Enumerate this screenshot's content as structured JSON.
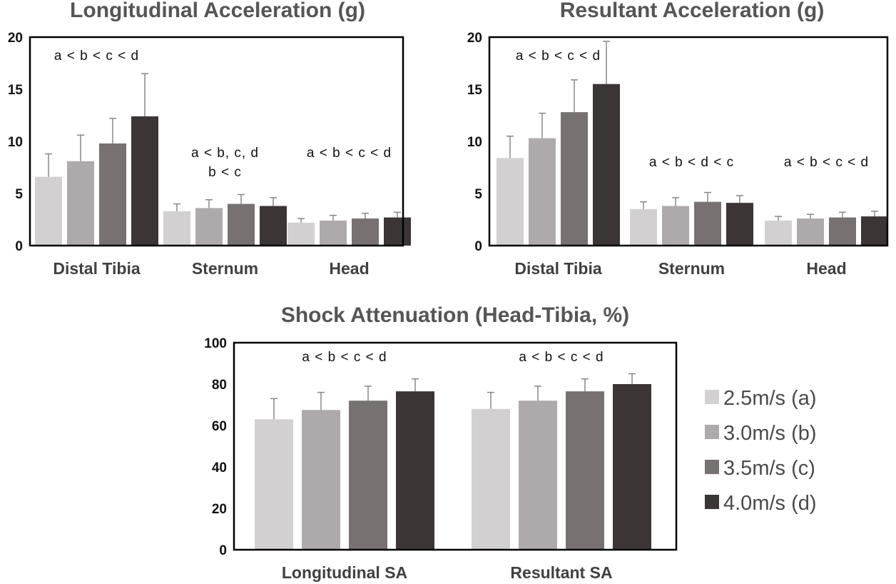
{
  "colors": [
    "#d2d0d1",
    "#aeaaab",
    "#777172",
    "#3b3536"
  ],
  "legend": [
    "2.5m/s (a)",
    "3.0m/s (b)",
    "3.5m/s (c)",
    "4.0m/s (d)"
  ],
  "chart_data": [
    {
      "type": "bar",
      "title": "Longitudinal Acceleration (g)",
      "categories": [
        "Distal Tibia",
        "Sternum",
        "Head"
      ],
      "ylim": [
        0,
        20
      ],
      "yticks": [
        "0",
        "5",
        "10",
        "15",
        "20"
      ],
      "series": [
        {
          "name": "2.5m/s (a)",
          "values": [
            6.6,
            3.3,
            2.2
          ],
          "errors": [
            2.2,
            0.7,
            0.4
          ]
        },
        {
          "name": "3.0m/s (b)",
          "values": [
            8.1,
            3.6,
            2.4
          ],
          "errors": [
            2.5,
            0.8,
            0.5
          ]
        },
        {
          "name": "3.5m/s (c)",
          "values": [
            9.8,
            4.0,
            2.6
          ],
          "errors": [
            2.4,
            0.9,
            0.5
          ]
        },
        {
          "name": "4.0m/s (d)",
          "values": [
            12.4,
            3.8,
            2.7
          ],
          "errors": [
            4.1,
            0.8,
            0.5
          ]
        }
      ],
      "annotations": [
        {
          "category": 0,
          "lines": [
            "a < b < c < d"
          ],
          "position": "top"
        },
        {
          "category": 1,
          "lines": [
            "a < b, c, d",
            "b < c"
          ],
          "position": "middle"
        },
        {
          "category": 2,
          "lines": [
            "a < b < c < d"
          ],
          "position": "middle"
        }
      ]
    },
    {
      "type": "bar",
      "title": "Resultant Acceleration (g)",
      "categories": [
        "Distal Tibia",
        "Sternum",
        "Head"
      ],
      "ylim": [
        0,
        20
      ],
      "yticks": [
        "0",
        "5",
        "10",
        "15",
        "20"
      ],
      "series": [
        {
          "name": "2.5m/s (a)",
          "values": [
            8.4,
            3.5,
            2.4
          ],
          "errors": [
            2.1,
            0.7,
            0.4
          ]
        },
        {
          "name": "3.0m/s (b)",
          "values": [
            10.3,
            3.8,
            2.6
          ],
          "errors": [
            2.4,
            0.8,
            0.4
          ]
        },
        {
          "name": "3.5m/s (c)",
          "values": [
            12.8,
            4.2,
            2.7
          ],
          "errors": [
            3.1,
            0.9,
            0.5
          ]
        },
        {
          "name": "4.0m/s (d)",
          "values": [
            15.5,
            4.1,
            2.8
          ],
          "errors": [
            4.1,
            0.7,
            0.5
          ]
        }
      ],
      "annotations": [
        {
          "category": 0,
          "lines": [
            "a < b < c < d"
          ],
          "position": "top"
        },
        {
          "category": 1,
          "lines": [
            "a < b < d < c"
          ],
          "position": "middle"
        },
        {
          "category": 2,
          "lines": [
            "a < b < c < d"
          ],
          "position": "middle"
        }
      ]
    },
    {
      "type": "bar",
      "title": "Shock Attenuation (Head-Tibia, %)",
      "categories": [
        "Longitudinal SA",
        "Resultant SA"
      ],
      "ylim": [
        0,
        100
      ],
      "yticks": [
        "0",
        "20",
        "40",
        "60",
        "80",
        "100"
      ],
      "series": [
        {
          "name": "2.5m/s (a)",
          "values": [
            63,
            68
          ],
          "errors": [
            10,
            8
          ]
        },
        {
          "name": "3.0m/s (b)",
          "values": [
            67.5,
            72
          ],
          "errors": [
            8.5,
            7
          ]
        },
        {
          "name": "3.5m/s (c)",
          "values": [
            72,
            76.5
          ],
          "errors": [
            7,
            6
          ]
        },
        {
          "name": "4.0m/s (d)",
          "values": [
            76.5,
            80
          ],
          "errors": [
            6,
            5
          ]
        }
      ],
      "annotations": [
        {
          "category": 0,
          "lines": [
            "a < b < c < d"
          ],
          "position": "top"
        },
        {
          "category": 1,
          "lines": [
            "a < b < c < d"
          ],
          "position": "top"
        }
      ]
    }
  ]
}
